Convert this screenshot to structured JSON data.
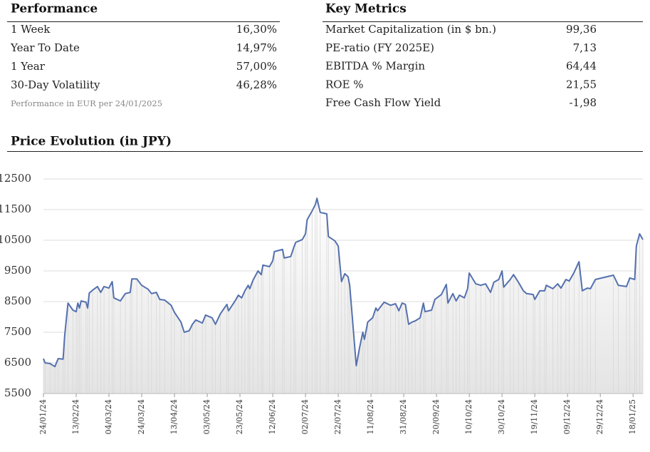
{
  "performance": {
    "title": "Performance",
    "rows": [
      [
        "1 Week",
        "16,30%"
      ],
      [
        "Year To Date",
        "14,97%"
      ],
      [
        "1 Year",
        "57,00%"
      ],
      [
        "30-Day Volatility",
        "46,28%"
      ]
    ],
    "note": "Performance in EUR per 24/01/2025"
  },
  "key_metrics": {
    "title": "Key Metrics",
    "rows": [
      [
        "Market Capitalization (in $ bn.)",
        "99,36"
      ],
      [
        "PE-ratio (FY 2025E)",
        "7,13"
      ],
      [
        "EBITDA % Margin",
        "64,44"
      ],
      [
        "ROE %",
        "21,55"
      ],
      [
        "Free Cash Flow Yield",
        "-1,98"
      ]
    ]
  },
  "chart_data": {
    "type": "line",
    "title": "Price Evolution (in JPY)",
    "color": "#5470ae",
    "grid": true,
    "ylim": [
      5500,
      12500
    ],
    "yticks": [
      5500,
      6500,
      7500,
      8500,
      9500,
      10500,
      11500,
      12500
    ],
    "xlim": [
      "24/01/24",
      "24/01/25"
    ],
    "xticks": [
      "24/01/24",
      "13/02/24",
      "04/03/24",
      "24/03/24",
      "13/04/24",
      "03/05/24",
      "23/05/24",
      "12/06/24",
      "02/07/24",
      "22/07/24",
      "11/08/24",
      "31/08/24",
      "20/09/24",
      "10/10/24",
      "30/10/24",
      "19/11/24",
      "09/12/24",
      "29/12/24",
      "18/01/25"
    ],
    "x": [
      "24/01/24",
      "25/01/24",
      "28/01/24",
      "31/01/24",
      "02/02/24",
      "05/02/24",
      "06/02/24",
      "08/02/24",
      "11/02/24",
      "13/02/24",
      "14/02/24",
      "15/02/24",
      "16/02/24",
      "19/02/24",
      "20/02/24",
      "21/02/24",
      "23/02/24",
      "26/02/24",
      "28/02/24",
      "01/03/24",
      "04/03/24",
      "06/03/24",
      "07/03/24",
      "11/03/24",
      "14/03/24",
      "17/03/24",
      "18/03/24",
      "21/03/24",
      "24/03/24",
      "28/03/24",
      "30/03/24",
      "02/04/24",
      "04/04/24",
      "07/04/24",
      "11/04/24",
      "13/04/24",
      "17/04/24",
      "19/04/24",
      "22/04/24",
      "24/04/24",
      "26/04/24",
      "30/04/24",
      "02/05/24",
      "06/05/24",
      "08/05/24",
      "11/05/24",
      "15/05/24",
      "16/05/24",
      "20/05/24",
      "22/05/24",
      "24/05/24",
      "26/05/24",
      "28/05/24",
      "29/05/24",
      "31/05/24",
      "03/06/24",
      "05/06/24",
      "06/06/24",
      "10/06/24",
      "12/06/24",
      "13/06/24",
      "18/06/24",
      "19/06/24",
      "23/06/24",
      "25/06/24",
      "26/06/24",
      "30/06/24",
      "02/07/24",
      "03/07/24",
      "06/07/24",
      "08/07/24",
      "09/07/24",
      "11/07/24",
      "15/07/24",
      "16/07/24",
      "20/07/24",
      "22/07/24",
      "24/07/24",
      "26/07/24",
      "28/07/24",
      "29/07/24",
      "02/08/24",
      "04/08/24",
      "06/08/24",
      "07/08/24",
      "09/08/24",
      "12/08/24",
      "14/08/24",
      "15/08/24",
      "19/08/24",
      "23/08/24",
      "26/08/24",
      "28/08/24",
      "30/08/24",
      "01/09/24",
      "03/09/24",
      "05/09/24",
      "07/09/24",
      "10/09/24",
      "12/09/24",
      "13/09/24",
      "17/09/24",
      "19/09/24",
      "23/09/24",
      "26/09/24",
      "27/09/24",
      "30/09/24",
      "02/10/24",
      "04/10/24",
      "07/10/24",
      "09/10/24",
      "10/10/24",
      "14/10/24",
      "17/10/24",
      "20/10/24",
      "23/10/24",
      "25/10/24",
      "28/10/24",
      "30/10/24",
      "31/10/24",
      "04/11/24",
      "06/11/24",
      "09/11/24",
      "12/11/24",
      "14/11/24",
      "18/11/24",
      "19/11/24",
      "22/11/24",
      "25/11/24",
      "26/11/24",
      "30/11/24",
      "03/12/24",
      "05/12/24",
      "08/12/24",
      "10/12/24",
      "13/12/24",
      "16/12/24",
      "18/12/24",
      "21/12/24",
      "23/12/24",
      "26/12/24",
      "06/01/25",
      "09/01/25",
      "14/01/25",
      "16/01/25",
      "19/01/25",
      "20/01/25",
      "22/01/25",
      "24/01/25"
    ],
    "values": [
      6640,
      6500,
      6480,
      6380,
      6640,
      6620,
      7400,
      8450,
      8220,
      8170,
      8450,
      8290,
      8520,
      8480,
      8290,
      8780,
      8870,
      8990,
      8800,
      8990,
      8940,
      9150,
      8620,
      8520,
      8760,
      8800,
      9240,
      9240,
      9030,
      8900,
      8760,
      8800,
      8570,
      8550,
      8380,
      8150,
      7830,
      7500,
      7550,
      7760,
      7900,
      7800,
      8060,
      7970,
      7760,
      8100,
      8410,
      8200,
      8520,
      8710,
      8620,
      8850,
      9030,
      8920,
      9200,
      9500,
      9380,
      9690,
      9640,
      9830,
      10130,
      10200,
      9920,
      9970,
      10290,
      10430,
      10520,
      10710,
      11170,
      11450,
      11660,
      11870,
      11410,
      11360,
      10620,
      10480,
      10310,
      9150,
      9410,
      9310,
      9030,
      6410,
      6990,
      7500,
      7270,
      7830,
      7970,
      8290,
      8200,
      8480,
      8380,
      8430,
      8200,
      8450,
      8410,
      7760,
      7830,
      7870,
      7970,
      8450,
      8170,
      8220,
      8570,
      8730,
      9060,
      8450,
      8760,
      8520,
      8710,
      8620,
      8920,
      9430,
      9080,
      9030,
      9080,
      8800,
      9130,
      9220,
      9500,
      8970,
      9220,
      9380,
      9130,
      8850,
      8760,
      8730,
      8570,
      8850,
      8850,
      9030,
      8920,
      9080,
      8940,
      9220,
      9170,
      9450,
      9800,
      8850,
      8940,
      8920,
      9220,
      9360,
      9030,
      8990,
      9270,
      9220,
      10310,
      10710,
      10520
    ]
  }
}
